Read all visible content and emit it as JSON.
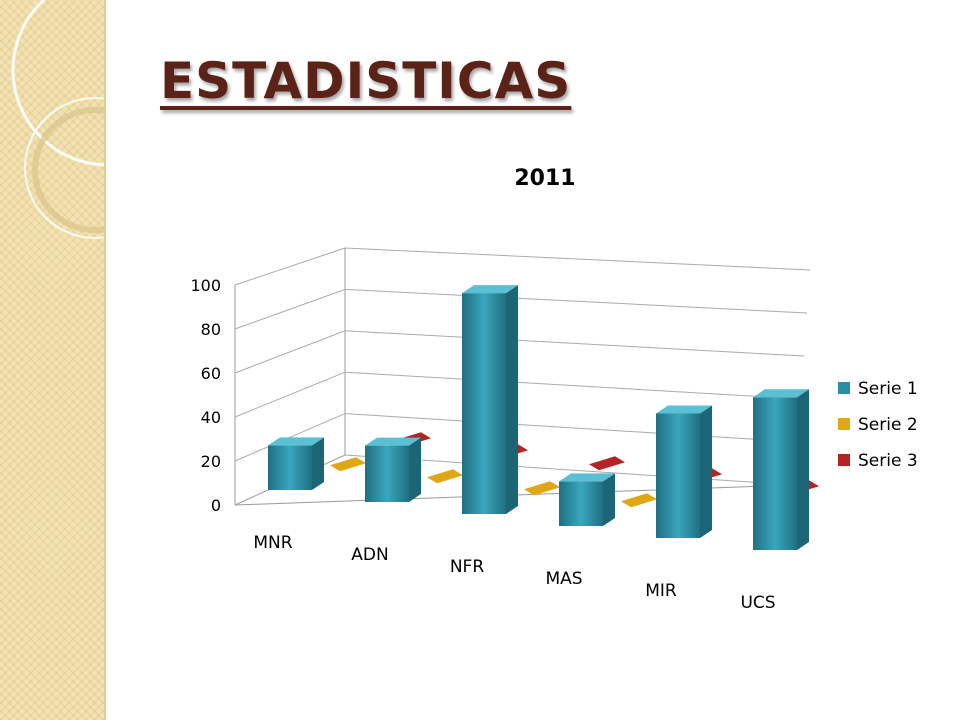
{
  "slide": {
    "title": "ESTADISTICAS"
  },
  "colors": {
    "title": "#5b2317",
    "side_panel": "#f3e3b3",
    "serie1": "#2a8fa5",
    "serie2": "#e0a613",
    "serie3": "#b52424"
  },
  "chart_data": {
    "type": "bar",
    "style": "3d-clustered-depth",
    "title": "2011",
    "xlabel": "",
    "ylabel": "",
    "categories": [
      "MNR",
      "ADN",
      "NFR",
      "MAS",
      "MIR",
      "UCS"
    ],
    "series": [
      {
        "name": "Serie 1",
        "color": "#2a8fa5",
        "values": [
          19,
          24,
          94,
          19,
          53,
          65
        ]
      },
      {
        "name": "Serie 2",
        "color": "#e0a613",
        "values": [
          2,
          2,
          2,
          2,
          0,
          0
        ]
      },
      {
        "name": "Serie 3",
        "color": "#b52424",
        "values": [
          2,
          2,
          2,
          2,
          2,
          0
        ]
      }
    ],
    "ylim": [
      0,
      100
    ],
    "yticks": [
      "0",
      "20",
      "40",
      "60",
      "80",
      "100"
    ],
    "grid": true,
    "legend_position": "right"
  }
}
